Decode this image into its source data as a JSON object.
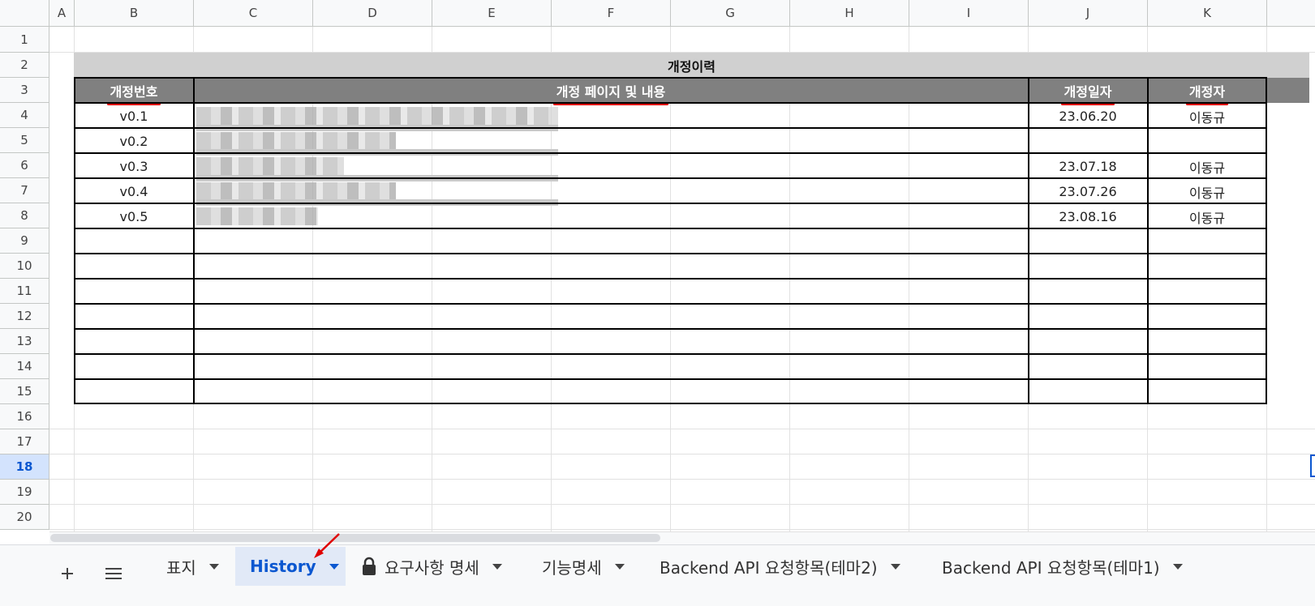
{
  "columns": [
    "A",
    "B",
    "C",
    "D",
    "E",
    "F",
    "G",
    "H",
    "I",
    "J",
    "K"
  ],
  "rows": [
    "1",
    "2",
    "3",
    "4",
    "5",
    "6",
    "7",
    "8",
    "9",
    "10",
    "11",
    "12",
    "13",
    "14",
    "15",
    "16",
    "17",
    "18",
    "19",
    "20"
  ],
  "selected_row": "18",
  "table": {
    "title": "개정이력",
    "headers": {
      "version": "개정번호",
      "content": "개정 페이지 및 내용",
      "date": "개정일자",
      "author": "개정자"
    },
    "entries": [
      {
        "version": "v0.1",
        "date": "23.06.20",
        "author": "이동규"
      },
      {
        "version": "v0.2",
        "date": "",
        "author": ""
      },
      {
        "version": "v0.3",
        "date": "23.07.18",
        "author": "이동규"
      },
      {
        "version": "v0.4",
        "date": "23.07.26",
        "author": "이동규"
      },
      {
        "version": "v0.5",
        "date": "23.08.16",
        "author": "이동규"
      }
    ]
  },
  "sheet_tabs": [
    {
      "label": "표지",
      "active": false,
      "locked": false
    },
    {
      "label": "History",
      "active": true,
      "locked": false
    },
    {
      "label": "요구사항 명세",
      "active": false,
      "locked": true
    },
    {
      "label": "기능명세",
      "active": false,
      "locked": false
    },
    {
      "label": "Backend API 요청항목(테마2)",
      "active": false,
      "locked": false
    },
    {
      "label": "Backend API 요청항목(테마1)",
      "active": false,
      "locked": false
    }
  ],
  "icons": {
    "add_sheet": "plus-icon",
    "all_sheets": "menu-icon",
    "lock": "lock-icon",
    "dropdown": "caret-down-icon",
    "annotation": "red-arrow-icon"
  },
  "colors": {
    "accent": "#0b57d0",
    "header_fill": "#808080",
    "title_fill": "#d0d0d0",
    "annotation": "#e00000"
  }
}
